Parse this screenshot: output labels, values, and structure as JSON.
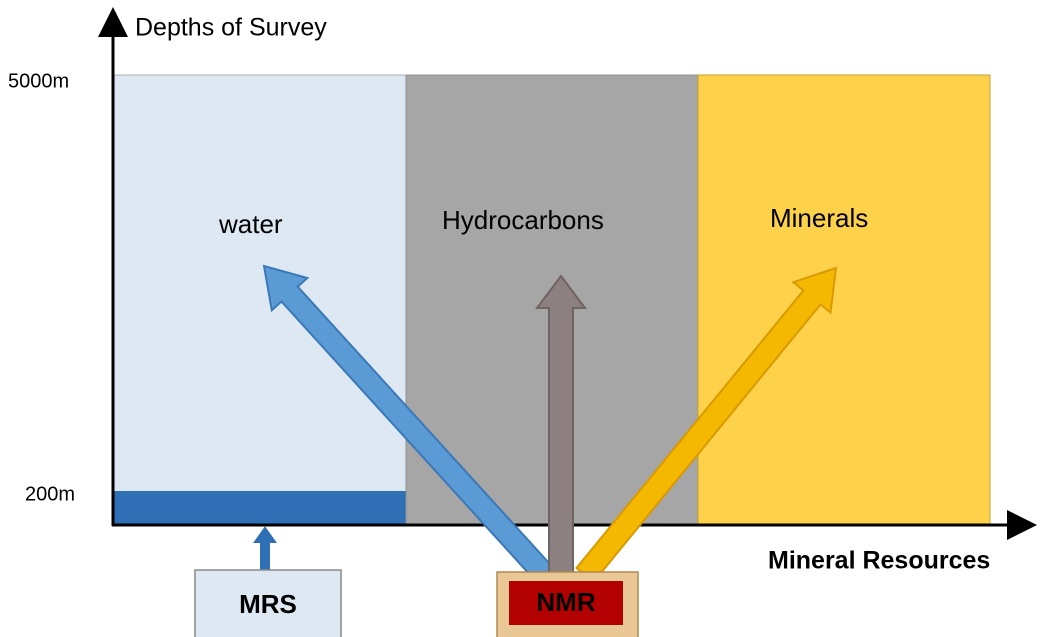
{
  "axis": {
    "title": "Depths of Survey",
    "x_label": "Mineral Resources",
    "depth_top": "5000m",
    "depth_bottom": "200m"
  },
  "regions": [
    {
      "label": "water"
    },
    {
      "label": "Hydrocarbons"
    },
    {
      "label": "Minerals"
    }
  ],
  "methods": [
    {
      "label": "MRS"
    },
    {
      "label": "NMR"
    }
  ]
}
